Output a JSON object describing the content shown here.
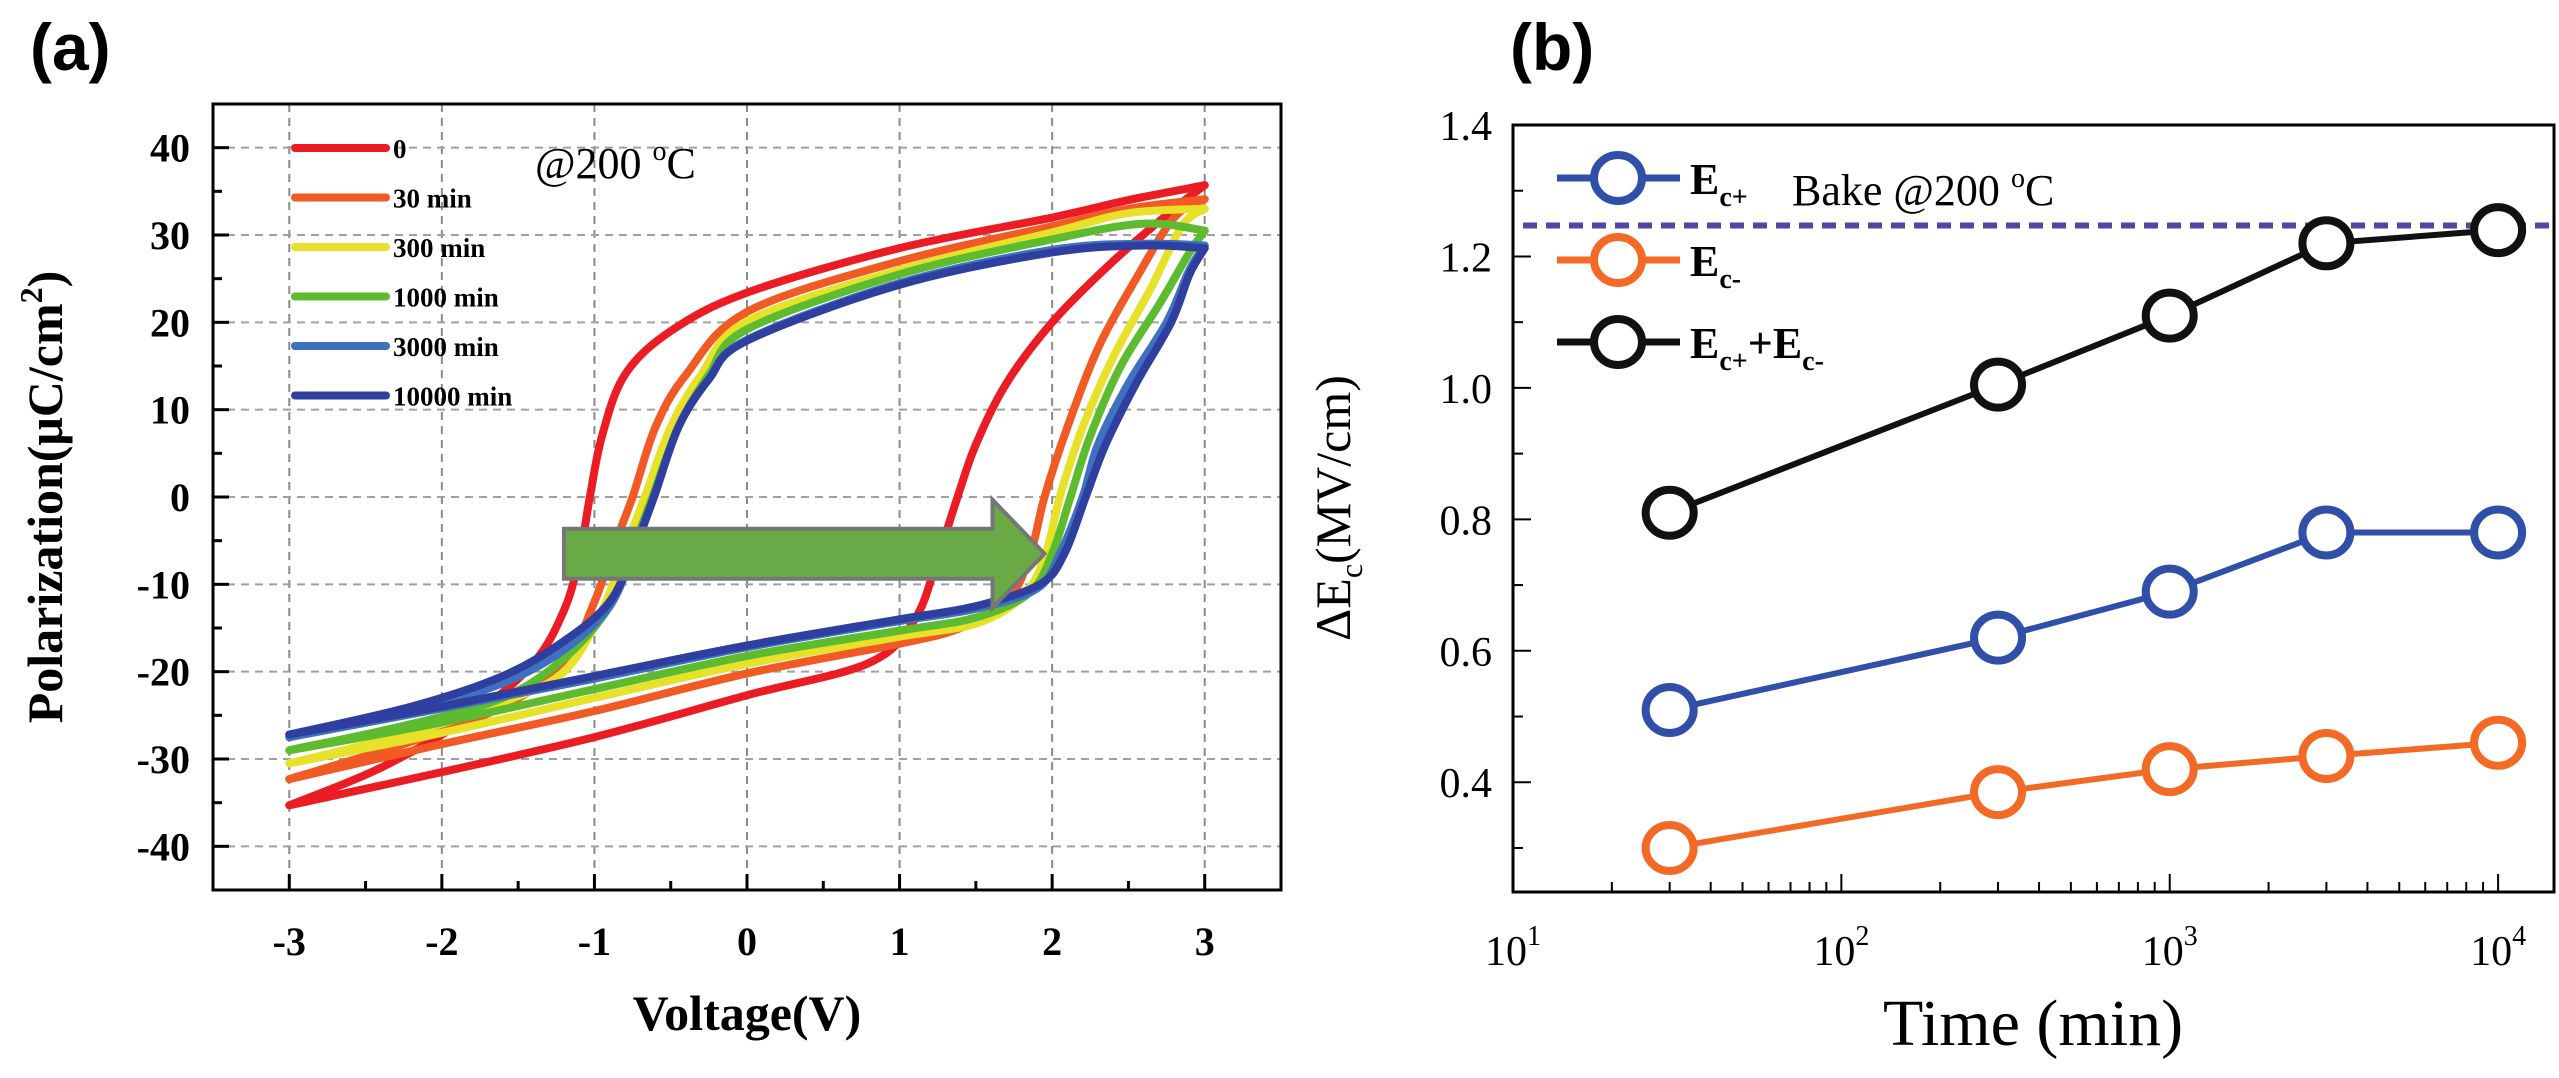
{
  "figure_labels": {
    "a": "(a)",
    "b": "(b)"
  },
  "chart_data": [
    {
      "id": "a",
      "type": "line",
      "title": "",
      "xlabel": "Voltage(V)",
      "ylabel": "Polarization(μC/cm²)",
      "ylabel_parts": {
        "main": "Polarization(μC/cm",
        "sup": "2",
        "end": ")"
      },
      "xlim": [
        -3.5,
        3.5
      ],
      "ylim": [
        -45,
        45
      ],
      "xticks": [
        -3,
        -2,
        -1,
        0,
        1,
        2,
        3
      ],
      "xtick_labels": [
        "-3",
        "-2",
        "-1",
        "0",
        "1",
        "2",
        "3"
      ],
      "yticks": [
        -40,
        -30,
        -20,
        -10,
        0,
        10,
        20,
        30,
        40
      ],
      "ytick_labels": [
        "-40",
        "-30",
        "-20",
        "-10",
        "0",
        "10",
        "20",
        "30",
        "40"
      ],
      "grid": true,
      "legend_position": "top-left",
      "annotation": {
        "text": "@200 ",
        "sup": "o",
        "unit": "C"
      },
      "arrow_annotation": {
        "from_voltage": -1.2,
        "to_voltage": 1.95,
        "at_polarization": -6.5,
        "color": "#6AAA46",
        "meaning": "coercive voltage shift with bake time"
      },
      "series": [
        {
          "name": "0",
          "color": "#EC1C24",
          "upper_branch": {
            "x": [
              -3,
              -2.4,
              -1.8,
              -1.4,
              -1.2,
              -1.1,
              -1.03,
              -0.95,
              -0.8,
              -0.5,
              0,
              1,
              2,
              2.5,
              3
            ],
            "y": [
              -35.3,
              -31,
              -25,
              -19,
              -13,
              -7,
              0,
              7,
              14,
              19,
              23.4,
              28.5,
              32,
              34,
              35.7
            ]
          },
          "lower_branch": {
            "x": [
              3,
              2.8,
              2.4,
              2.0,
              1.7,
              1.5,
              1.38,
              1.25,
              1.1,
              0.8,
              0,
              -1,
              -2,
              -3
            ],
            "y": [
              35.7,
              33,
              27,
              20,
              13,
              6,
              0,
              -7,
              -14,
              -19,
              -22.7,
              -27.5,
              -31.5,
              -35.3
            ]
          }
        },
        {
          "name": "30 min",
          "color": "#F15A24",
          "upper_branch": {
            "x": [
              -3,
              -2.2,
              -1.6,
              -1.2,
              -1.0,
              -0.88,
              -0.75,
              -0.6,
              -0.4,
              0,
              1,
              2,
              2.5,
              3
            ],
            "y": [
              -32.3,
              -28,
              -24,
              -19,
              -12,
              -6,
              0,
              8,
              14,
              21.2,
              27,
              31,
              33,
              34.1
            ]
          },
          "lower_branch": {
            "x": [
              3,
              2.8,
              2.55,
              2.3,
              2.1,
              1.95,
              1.85,
              1.7,
              1.4,
              1,
              0,
              -1,
              -2,
              -3
            ],
            "y": [
              34.1,
              32,
              25,
              17,
              8,
              0,
              -7,
              -12,
              -15,
              -16.8,
              -20.2,
              -24.5,
              -28.3,
              -32.3
            ]
          }
        },
        {
          "name": "300 min",
          "color": "#E8E12A",
          "upper_branch": {
            "x": [
              -3,
              -2.2,
              -1.6,
              -1.2,
              -0.95,
              -0.8,
              -0.67,
              -0.5,
              -0.3,
              0,
              1,
              2,
              2.5,
              3
            ],
            "y": [
              -30.5,
              -27,
              -23.5,
              -20,
              -13,
              -6,
              0,
              8,
              14,
              20.1,
              26,
              30.3,
              32.5,
              33
            ]
          },
          "lower_branch": {
            "x": [
              3,
              2.85,
              2.65,
              2.4,
              2.2,
              2.05,
              1.95,
              1.8,
              1.5,
              1,
              0,
              -1,
              -2,
              -3
            ],
            "y": [
              33,
              31,
              24,
              16,
              8,
              0,
              -7,
              -11.5,
              -14.5,
              -16,
              -19.1,
              -23,
              -27,
              -30.5
            ]
          }
        },
        {
          "name": "1000 min",
          "color": "#5DBB30",
          "upper_branch": {
            "x": [
              -3,
              -2.2,
              -1.6,
              -1.2,
              -0.9,
              -0.75,
              -0.62,
              -0.45,
              -0.25,
              0,
              1,
              2,
              2.6,
              3
            ],
            "y": [
              -29,
              -26,
              -23,
              -18.5,
              -12.5,
              -6,
              0,
              8,
              14,
              19.2,
              25.5,
              29.5,
              31.3,
              30.5
            ]
          },
          "lower_branch": {
            "x": [
              3,
              2.9,
              2.7,
              2.45,
              2.25,
              2.12,
              2.0,
              1.85,
              1.5,
              1,
              0,
              -1,
              -2,
              -3
            ],
            "y": [
              30.5,
              28,
              22,
              15,
              7,
              0,
              -6.5,
              -11,
              -13.8,
              -15.3,
              -18.2,
              -22,
              -25.8,
              -29
            ]
          }
        },
        {
          "name": "3000 min",
          "color": "#3E71C0",
          "upper_branch": {
            "x": [
              -3,
              -2.2,
              -1.6,
              -1.2,
              -0.9,
              -0.74,
              -0.61,
              -0.45,
              -0.25,
              0,
              1,
              2,
              2.6,
              3
            ],
            "y": [
              -27.5,
              -24.5,
              -21.3,
              -17.5,
              -12.5,
              -6,
              0,
              8,
              13.5,
              18,
              24.5,
              28.3,
              29,
              28.8
            ]
          },
          "lower_branch": {
            "x": [
              3,
              2.9,
              2.75,
              2.5,
              2.3,
              2.2,
              2.05,
              1.9,
              1.5,
              1,
              0,
              -1,
              -2,
              -3
            ],
            "y": [
              28.8,
              26,
              20,
              13,
              6,
              0,
              -6.5,
              -10.5,
              -12.8,
              -14.2,
              -17.2,
              -20.8,
              -24.2,
              -27.5
            ]
          }
        },
        {
          "name": "10000 min",
          "color": "#2E3F9F",
          "upper_branch": {
            "x": [
              -3,
              -2.2,
              -1.6,
              -1.2,
              -0.9,
              -0.74,
              -0.61,
              -0.45,
              -0.25,
              0,
              1,
              2,
              2.6,
              3
            ],
            "y": [
              -27.2,
              -24,
              -20.5,
              -16.5,
              -12,
              -6,
              0,
              8,
              13.5,
              17.9,
              24.3,
              28,
              28.8,
              28.5
            ]
          },
          "lower_branch": {
            "x": [
              3,
              2.9,
              2.78,
              2.55,
              2.35,
              2.22,
              2.08,
              1.92,
              1.5,
              1,
              0,
              -1,
              -2,
              -3
            ],
            "y": [
              28.5,
              25.5,
              20,
              13,
              6,
              0,
              -6.5,
              -10,
              -12.5,
              -14,
              -17,
              -20.5,
              -24,
              -27.2
            ]
          }
        }
      ]
    },
    {
      "id": "b",
      "type": "line",
      "title": "",
      "xlabel": "Time (min)",
      "ylabel": "ΔEc(MV/cm)",
      "ylabel_parts": {
        "delta": "Δ",
        "main": "E",
        "sub": "c",
        "unit": "(MV/cm)"
      },
      "xscale": "log",
      "xlim": [
        10,
        14800
      ],
      "ylim": [
        0.233,
        1.4
      ],
      "xticks": [
        10,
        100,
        1000,
        10000
      ],
      "xtick_labels": [
        {
          "base": "10",
          "exp": "1"
        },
        {
          "base": "10",
          "exp": "2"
        },
        {
          "base": "10",
          "exp": "3"
        },
        {
          "base": "10",
          "exp": "4"
        }
      ],
      "yticks": [
        0.4,
        0.6,
        0.8,
        1.0,
        1.2,
        1.4
      ],
      "ytick_labels": [
        "0.4",
        "0.6",
        "0.8",
        "1.0",
        "1.2",
        "1.4"
      ],
      "grid": false,
      "legend_position": "top-left",
      "annotation": {
        "text": "Bake @200 ",
        "sup": "o",
        "unit": "C"
      },
      "reference_line": {
        "y": 1.247,
        "style": "dashed",
        "color": "#5146A6"
      },
      "x": [
        30,
        300,
        1000,
        3000,
        10000
      ],
      "series": [
        {
          "name": "Ec+",
          "label_main": "E",
          "label_sub": "c+",
          "color": "#2F4FA8",
          "marker": "open-circle",
          "values": [
            0.51,
            0.62,
            0.69,
            0.78,
            0.78
          ]
        },
        {
          "name": "Ec-",
          "label_main": "E",
          "label_sub": "c-",
          "color": "#F26A25",
          "marker": "open-circle",
          "values": [
            0.3,
            0.385,
            0.42,
            0.44,
            0.46
          ]
        },
        {
          "name": "Ec++Ec-",
          "label_main": "E",
          "label_sub": "c+",
          "label_main2": "+E",
          "label_sub2": "c-",
          "color": "#111111",
          "marker": "open-circle",
          "values": [
            0.81,
            1.005,
            1.11,
            1.22,
            1.24
          ]
        }
      ]
    }
  ]
}
